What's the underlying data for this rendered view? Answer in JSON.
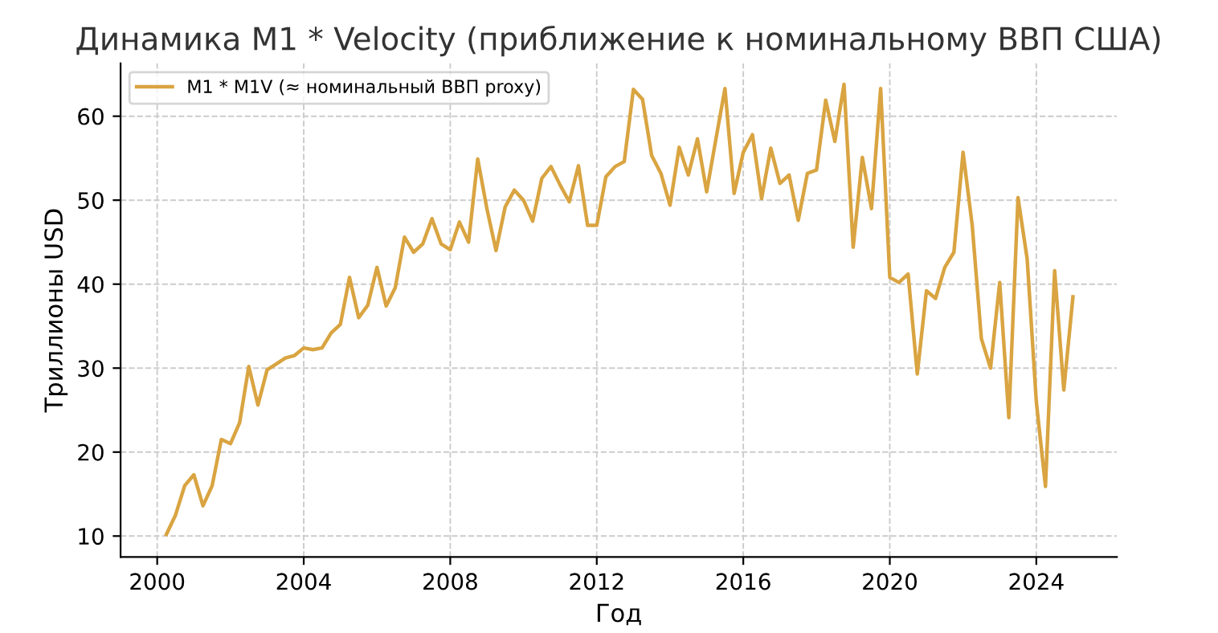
{
  "chart_data": {
    "type": "line",
    "title": "Динамика M1 * Velocity (приближение к номинальному ВВП США)",
    "xlabel": "Год",
    "ylabel": "Триллионы USD",
    "x": [
      2000.25,
      2000.5,
      2000.75,
      2001.0,
      2001.25,
      2001.5,
      2001.75,
      2002.0,
      2002.25,
      2002.5,
      2002.75,
      2003.0,
      2003.25,
      2003.5,
      2003.75,
      2004.0,
      2004.25,
      2004.5,
      2004.75,
      2005.0,
      2005.25,
      2005.5,
      2005.75,
      2006.0,
      2006.25,
      2006.5,
      2006.75,
      2007.0,
      2007.25,
      2007.5,
      2007.75,
      2008.0,
      2008.25,
      2008.5,
      2008.75,
      2009.0,
      2009.25,
      2009.5,
      2009.75,
      2010.0,
      2010.25,
      2010.5,
      2010.75,
      2011.0,
      2011.25,
      2011.5,
      2011.75,
      2012.0,
      2012.25,
      2012.5,
      2012.75,
      2013.0,
      2013.25,
      2013.5,
      2013.75,
      2014.0,
      2014.25,
      2014.5,
      2014.75,
      2015.0,
      2015.25,
      2015.5,
      2015.75,
      2016.0,
      2016.25,
      2016.5,
      2016.75,
      2017.0,
      2017.25,
      2017.5,
      2017.75,
      2018.0,
      2018.25,
      2018.5,
      2018.75,
      2019.0,
      2019.25,
      2019.5,
      2019.75,
      2020.0,
      2020.25,
      2020.5,
      2020.75,
      2021.0,
      2021.25,
      2021.5,
      2021.75,
      2022.0,
      2022.25,
      2022.5,
      2022.75,
      2023.0,
      2023.25,
      2023.5,
      2023.75,
      2024.0,
      2024.25,
      2024.5,
      2024.75,
      2025.0
    ],
    "series": [
      {
        "name": "M1 * M1V (≈ номинальный ВВП proxy)",
        "color": "#d9a441",
        "values": [
          10.2,
          12.5,
          16,
          17.3,
          13.6,
          16,
          21.5,
          21,
          23.5,
          30.2,
          25.6,
          29.8,
          30.5,
          31.2,
          31.5,
          32.4,
          32.2,
          32.4,
          34.2,
          35.2,
          40.8,
          36,
          37.5,
          42,
          37.4,
          39.6,
          45.6,
          43.8,
          44.8,
          47.8,
          44.8,
          44.1,
          47.4,
          45,
          54.9,
          49,
          44,
          49.2,
          51.2,
          50,
          47.5,
          52.6,
          54,
          51.8,
          49.8,
          54.1,
          47,
          47,
          52.8,
          54,
          54.6,
          63.2,
          62,
          55.3,
          53.2,
          49.4,
          56.3,
          53,
          57.3,
          51,
          57.2,
          63.3,
          50.8,
          55.7,
          57.8,
          50.2,
          56.2,
          52,
          53,
          47.6,
          53.2,
          53.6,
          61.9,
          57,
          63.8,
          44.4,
          55.1,
          49,
          63.3,
          40.8,
          40.2,
          41.2,
          29.3,
          39.2,
          38.3,
          42,
          43.8,
          55.7,
          47,
          33.5,
          30,
          40.2,
          24.1,
          50.3,
          43,
          26,
          15.9,
          41.6,
          27.4,
          38.5
        ]
      }
    ],
    "xlim": [
      1999.0,
      2026.2
    ],
    "ylim": [
      7.5,
      66.3
    ],
    "xticks": [
      2000,
      2004,
      2008,
      2012,
      2016,
      2020,
      2024
    ],
    "yticks": [
      10,
      20,
      30,
      40,
      50,
      60
    ],
    "grid": true,
    "legend": "top left",
    "line_style": "solid",
    "marker": "none"
  }
}
